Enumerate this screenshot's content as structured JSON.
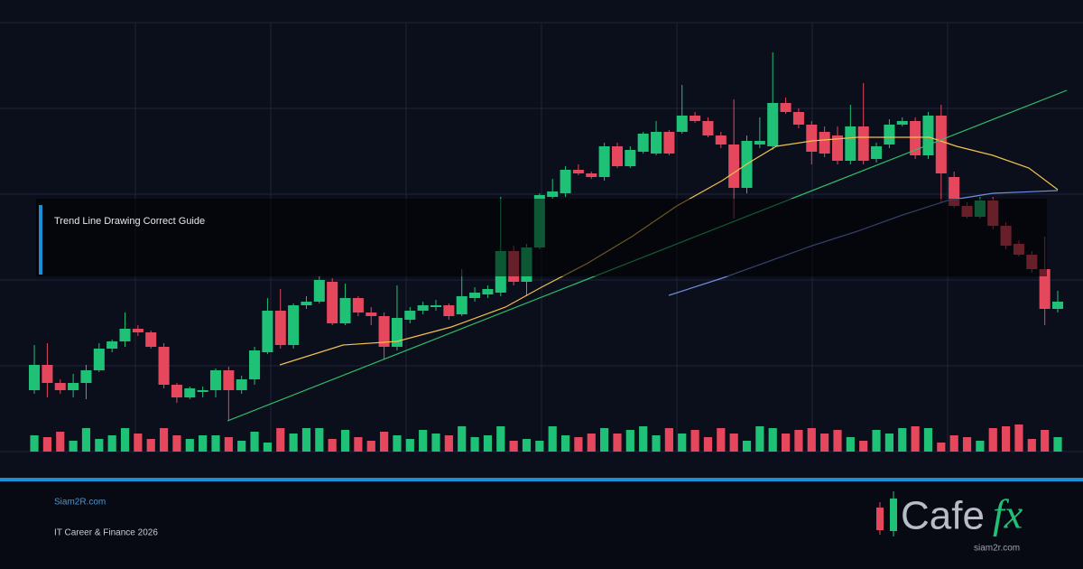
{
  "chart_data": {
    "type": "candlestick",
    "xlim": [
      -2.65,
      80.95
    ],
    "xticks": [
      7.8,
      18.25,
      28.7,
      39.15,
      49.6,
      60.05,
      70.5
    ],
    "ylim": [
      0,
      475
    ],
    "yticks": [
      0,
      95,
      190,
      285,
      380,
      475
    ],
    "grid": true,
    "up_color": "#1fc177",
    "down_color": "#e5475c",
    "open": [
      68,
      96,
      76,
      68,
      76,
      90,
      114,
      122,
      136,
      132,
      116,
      74,
      60,
      66,
      68,
      90,
      68,
      80,
      110,
      156,
      118,
      162,
      166,
      188,
      142,
      170,
      154,
      150,
      116,
      146,
      156,
      160,
      162,
      152,
      170,
      174,
      176,
      222,
      188,
      226,
      282,
      286,
      312,
      308,
      304,
      338,
      316,
      332,
      330,
      354,
      354,
      372,
      366,
      350,
      340,
      292,
      340,
      338,
      386,
      376,
      362,
      354,
      350,
      322,
      360,
      324,
      340,
      362,
      366,
      328,
      372,
      304,
      272,
      260,
      278,
      250,
      230,
      218,
      202,
      158
    ],
    "high": [
      118,
      120,
      80,
      86,
      96,
      120,
      124,
      154,
      140,
      134,
      120,
      76,
      72,
      72,
      92,
      94,
      84,
      116,
      170,
      180,
      164,
      172,
      194,
      192,
      186,
      172,
      160,
      154,
      184,
      160,
      166,
      168,
      164,
      202,
      182,
      184,
      282,
      228,
      230,
      286,
      302,
      316,
      318,
      310,
      342,
      342,
      338,
      354,
      366,
      356,
      406,
      376,
      370,
      354,
      390,
      350,
      370,
      442,
      392,
      380,
      366,
      360,
      360,
      384,
      408,
      342,
      368,
      370,
      370,
      376,
      384,
      310,
      276,
      282,
      282,
      254,
      234,
      222,
      238,
      178
    ],
    "low": [
      64,
      60,
      64,
      60,
      58,
      88,
      110,
      116,
      128,
      114,
      70,
      54,
      58,
      60,
      60,
      34,
      64,
      74,
      108,
      114,
      114,
      158,
      164,
      140,
      140,
      150,
      140,
      102,
      112,
      142,
      152,
      156,
      146,
      150,
      166,
      170,
      172,
      184,
      172,
      224,
      280,
      282,
      306,
      302,
      300,
      314,
      314,
      330,
      328,
      328,
      352,
      364,
      348,
      336,
      258,
      286,
      336,
      334,
      374,
      358,
      318,
      326,
      318,
      318,
      318,
      320,
      336,
      360,
      324,
      324,
      276,
      270,
      258,
      258,
      246,
      224,
      216,
      198,
      140,
      154
    ],
    "close": [
      96,
      76,
      68,
      76,
      90,
      114,
      122,
      136,
      132,
      116,
      74,
      60,
      70,
      68,
      90,
      68,
      80,
      112,
      156,
      118,
      162,
      166,
      190,
      142,
      170,
      154,
      150,
      116,
      148,
      156,
      162,
      162,
      150,
      172,
      176,
      180,
      222,
      188,
      226,
      284,
      288,
      312,
      308,
      304,
      338,
      316,
      334,
      352,
      354,
      330,
      372,
      366,
      350,
      340,
      292,
      344,
      344,
      386,
      376,
      362,
      332,
      330,
      322,
      360,
      322,
      338,
      362,
      366,
      328,
      372,
      308,
      272,
      260,
      278,
      250,
      228,
      218,
      202,
      158,
      166
    ],
    "volume": [
      18,
      16,
      22,
      12,
      26,
      14,
      18,
      26,
      20,
      14,
      26,
      18,
      14,
      18,
      18,
      16,
      12,
      22,
      10,
      26,
      20,
      26,
      26,
      14,
      24,
      16,
      12,
      22,
      18,
      14,
      24,
      20,
      18,
      28,
      16,
      18,
      28,
      12,
      14,
      12,
      28,
      18,
      16,
      20,
      26,
      20,
      24,
      28,
      18,
      26,
      20,
      24,
      16,
      26,
      20,
      12,
      28,
      26,
      20,
      24,
      26,
      20,
      24,
      16,
      12,
      24,
      20,
      26,
      28,
      26,
      10,
      18,
      16,
      12,
      26,
      28,
      30,
      14,
      24,
      16
    ],
    "volume_lim": [
      0,
      100
    ],
    "lines": [
      {
        "color": "#f2c14e",
        "x": [
          18.95,
          23.83,
          28.0,
          32.19,
          36.37,
          39.15,
          42.64,
          46.12,
          49.6,
          53.09,
          55.18,
          57.27,
          60.05,
          63.54,
          67.02,
          69.11,
          71.2,
          73.99,
          76.77,
          79
        ],
        "values": [
          96,
          118,
          122,
          138,
          160,
          182,
          208,
          238,
          272,
          300,
          320,
          338,
          344,
          348,
          348,
          348,
          338,
          328,
          314,
          290
        ]
      },
      {
        "color": "#6f8fe0",
        "x": [
          48.98,
          53.09,
          56.57,
          60.05,
          63.54,
          67.02,
          70.5,
          73.99,
          79
        ],
        "values": [
          173,
          192,
          210,
          228,
          244,
          262,
          278,
          286,
          289
        ]
      },
      {
        "color": "#2fbf6a",
        "x": [
          14.91,
          79.7
        ],
        "values": [
          34,
          400
        ]
      }
    ]
  },
  "banner": {
    "title": "Trend Line Drawing Correct Guide"
  },
  "footer": {
    "site": "Siam2R.com",
    "tagline": "IT Career & Finance 2026",
    "logo_main": "Cafe",
    "logo_accent": "fx",
    "logo_url": "siam2r.com"
  }
}
